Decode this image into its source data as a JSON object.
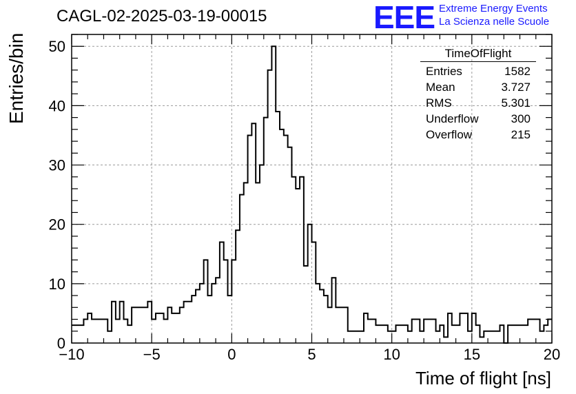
{
  "header": {
    "title": "CAGL-02-2025-03-19-00015",
    "logo_mark": "EEE",
    "logo_line1": "Extreme Energy Events",
    "logo_line2": "La Scienza nelle Scuole"
  },
  "stats": {
    "title": "TimeOfFlight",
    "rows": [
      {
        "label": "Entries",
        "value": "1582"
      },
      {
        "label": "Mean",
        "value": "3.727"
      },
      {
        "label": "RMS",
        "value": "5.301"
      },
      {
        "label": "Underflow",
        "value": "300"
      },
      {
        "label": "Overflow",
        "value": "215"
      }
    ]
  },
  "colors": {
    "line": "#000000",
    "grid": "#9a9a9a",
    "accent": "#1a1aff"
  },
  "chart_data": {
    "type": "bar",
    "title": "CAGL-02-2025-03-19-00015",
    "xlabel": "Time of flight [ns]",
    "ylabel": "Entries/bin",
    "xlim": [
      -10,
      20
    ],
    "ylim": [
      0,
      52
    ],
    "grid": true,
    "bin_width": 0.25,
    "x_start": -10,
    "values": [
      3,
      3,
      3,
      4,
      5,
      4,
      4,
      4,
      4,
      2,
      7,
      4,
      7,
      4,
      3,
      6,
      6,
      6,
      6,
      7,
      4,
      5,
      5,
      4,
      6,
      5,
      5,
      6,
      7,
      7,
      8,
      9,
      10,
      14,
      8,
      10,
      11,
      17,
      14,
      8,
      14,
      19,
      25,
      27,
      35,
      37,
      27,
      30,
      38,
      46,
      50,
      39,
      36,
      35,
      33,
      28,
      26,
      28,
      13,
      20,
      17,
      10,
      9,
      8,
      6,
      11,
      6,
      6,
      6,
      2,
      2,
      2,
      2,
      5,
      4,
      4,
      3,
      3,
      3,
      2,
      2,
      3,
      3,
      3,
      2,
      4,
      4,
      2,
      4,
      4,
      4,
      2,
      3,
      1,
      5,
      3,
      3,
      5,
      5,
      2,
      5,
      3,
      1,
      2,
      2,
      2,
      2,
      3,
      0,
      3,
      3,
      3,
      3,
      3,
      4,
      4,
      4,
      2,
      3,
      4
    ],
    "xticks": [
      "−10",
      "−5",
      "0",
      "5",
      "10",
      "15",
      "20"
    ],
    "xtick_values": [
      -10,
      -5,
      0,
      5,
      10,
      15,
      20
    ],
    "yticks": [
      "0",
      "10",
      "20",
      "30",
      "40",
      "50"
    ],
    "ytick_values": [
      0,
      10,
      20,
      30,
      40,
      50
    ]
  }
}
